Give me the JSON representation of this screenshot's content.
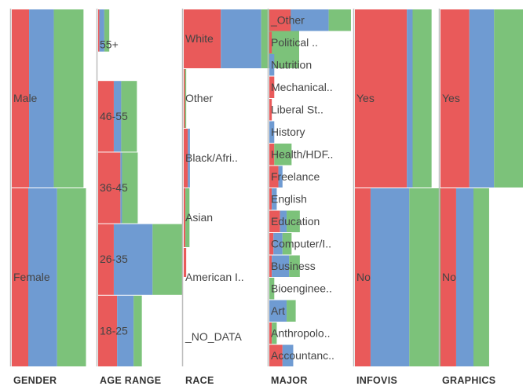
{
  "chart_data": {
    "type": "bar",
    "colors": {
      "red": "#e95a5a",
      "blue": "#6f9bd2",
      "green": "#7cc27a",
      "axis": "#bdbdbd"
    },
    "columns": [
      {
        "title": "GENDER",
        "categories": [
          {
            "label": "Male",
            "total": 1.0,
            "values": [
              0.21,
              0.3,
              0.36
            ]
          },
          {
            "label": "Female",
            "total": 1.0,
            "values": [
              0.2,
              0.35,
              0.35
            ]
          }
        ]
      },
      {
        "title": "AGE  RANGE",
        "categories": [
          {
            "label": "55+",
            "total": 0.6,
            "values": [
              0.015,
              0.06,
              0.06
            ]
          },
          {
            "label": "46-55",
            "total": 1.0,
            "values": [
              0.19,
              0.09,
              0.19
            ]
          },
          {
            "label": "36-45",
            "total": 1.0,
            "values": [
              0.27,
              0.02,
              0.19
            ]
          },
          {
            "label": "26-35",
            "total": 1.0,
            "values": [
              0.19,
              0.47,
              0.36
            ]
          },
          {
            "label": "18-25",
            "total": 1.0,
            "values": [
              0.23,
              0.2,
              0.1
            ]
          }
        ]
      },
      {
        "title": "RACE",
        "categories": [
          {
            "label": "White",
            "total": 1.0,
            "values": [
              0.45,
              0.49,
              0.46
            ]
          },
          {
            "label": "Other",
            "total": 1.0,
            "values": [
              0.015,
              0.0,
              0.015
            ]
          },
          {
            "label": "Black/Afri..",
            "total": 1.0,
            "values": [
              0.05,
              0.025,
              0.0
            ]
          },
          {
            "label": "Asian",
            "total": 1.0,
            "values": [
              0.02,
              0.0,
              0.05
            ]
          },
          {
            "label": "American I..",
            "total": 0.5,
            "values": [
              0.03,
              0.0,
              0.0
            ]
          },
          {
            "label": "_NO_DATA",
            "total": 0.0,
            "values": [
              0.0,
              0.0,
              0.0
            ]
          }
        ]
      },
      {
        "title": "MAJOR",
        "categories": [
          {
            "label": "_Other",
            "total": 1.0,
            "values": [
              0.26,
              0.46,
              0.27
            ]
          },
          {
            "label": "Political ..",
            "total": 1.0,
            "values": [
              0.03,
              0.0,
              0.0
            ]
          },
          {
            "label": "Nutrition",
            "total": 1.0,
            "values": [
              0.0,
              0.06,
              0.0
            ]
          },
          {
            "label": "Mechanical..",
            "total": 1.0,
            "values": [
              0.06,
              0.0,
              0.0
            ]
          },
          {
            "label": "Liberal St..",
            "total": 1.0,
            "values": [
              0.03,
              0.0,
              0.0
            ]
          },
          {
            "label": "History",
            "total": 1.0,
            "values": [
              0.0,
              0.06,
              0.0
            ]
          },
          {
            "label": "Health/HDF..",
            "total": 1.0,
            "values": [
              0.06,
              0.0,
              0.21
            ]
          },
          {
            "label": "Freelance",
            "total": 1.0,
            "values": [
              0.11,
              0.05,
              0.0
            ]
          },
          {
            "label": "English",
            "total": 1.0,
            "values": [
              0.03,
              0.06,
              0.0
            ]
          },
          {
            "label": "Education",
            "total": 1.0,
            "values": [
              0.13,
              0.08,
              0.16
            ]
          },
          {
            "label": "Computer/I..",
            "total": 1.0,
            "values": [
              0.05,
              0.11,
              0.11
            ]
          },
          {
            "label": "Business",
            "total": 1.0,
            "values": [
              0.03,
              0.21,
              0.13
            ]
          },
          {
            "label": "Bioenginee..",
            "total": 1.0,
            "values": [
              0.0,
              0.0,
              0.06
            ]
          },
          {
            "label": "Art",
            "total": 1.0,
            "values": [
              0.0,
              0.21,
              0.11
            ]
          },
          {
            "label": "Anthropolo..",
            "total": 1.0,
            "values": [
              0.03,
              0.0,
              0.06
            ]
          },
          {
            "label": "Accountanc..",
            "total": 1.0,
            "values": [
              0.16,
              0.13,
              0.0
            ]
          }
        ]
      },
      {
        "title": "INFOVIS",
        "categories": [
          {
            "label": "Yes",
            "total": 1.0,
            "values": [
              0.63,
              0.07,
              0.23
            ]
          },
          {
            "label": "No",
            "total": 1.0,
            "values": [
              0.19,
              0.47,
              0.38
            ]
          }
        ]
      },
      {
        "title": "GRAPHICS",
        "categories": [
          {
            "label": "Yes",
            "total": 1.0,
            "values": [
              0.35,
              0.3,
              0.35
            ]
          },
          {
            "label": "No",
            "total": 1.0,
            "values": [
              0.19,
              0.21,
              0.19
            ]
          }
        ]
      }
    ]
  }
}
